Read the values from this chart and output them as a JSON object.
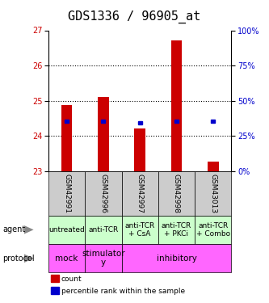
{
  "title": "GDS1336 / 96905_at",
  "samples": [
    "GSM42991",
    "GSM42996",
    "GSM42997",
    "GSM42998",
    "GSM43013"
  ],
  "bar_bottoms": [
    23.0,
    23.0,
    23.0,
    23.0,
    23.0
  ],
  "bar_tops": [
    24.88,
    25.12,
    24.22,
    26.72,
    23.28
  ],
  "percentile_values": [
    24.42,
    24.42,
    24.38,
    24.42,
    24.42
  ],
  "ylim_left": [
    23,
    27
  ],
  "ylim_right": [
    0,
    100
  ],
  "yticks_left": [
    23,
    24,
    25,
    26,
    27
  ],
  "yticks_right": [
    0,
    25,
    50,
    75,
    100
  ],
  "bar_color": "#cc0000",
  "percentile_color": "#0000cc",
  "agent_labels": [
    "untreated",
    "anti-TCR",
    "anti-TCR\n+ CsA",
    "anti-TCR\n+ PKCi",
    "anti-TCR\n+ Combo"
  ],
  "agent_bg": "#ccffcc",
  "protocol_bg": "#ff66ff",
  "sample_bg": "#cccccc",
  "legend_count_color": "#cc0000",
  "legend_pct_color": "#0000cc",
  "title_fontsize": 11,
  "tick_fontsize": 7,
  "sample_label_fontsize": 6.5,
  "agent_fontsize": 6.5,
  "protocol_fontsize": 7.5,
  "bar_width": 0.3
}
